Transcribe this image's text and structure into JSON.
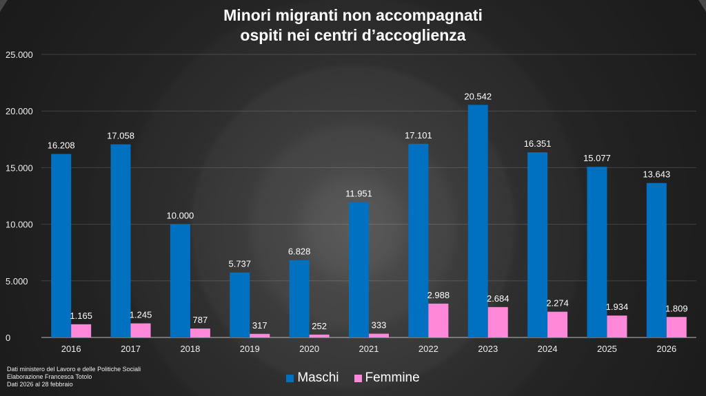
{
  "chart_data": {
    "type": "bar",
    "title_line1": "Minori migranti non accompagnati",
    "title_line2": "ospiti nei centri d’accoglienza",
    "categories": [
      "2016",
      "2017",
      "2018",
      "2019",
      "2020",
      "2021",
      "2022",
      "2023",
      "2024",
      "2025",
      "2026"
    ],
    "series": [
      {
        "name": "Maschi",
        "color": "#0070c0",
        "values": [
          16208,
          17058,
          10000,
          5737,
          6828,
          11951,
          17101,
          20542,
          16351,
          15077,
          13643
        ],
        "labels": [
          "16.208",
          "17.058",
          "10.000",
          "5.737",
          "6.828",
          "11.951",
          "17.101",
          "20.542",
          "16.351",
          "15.077",
          "13.643"
        ]
      },
      {
        "name": "Femmine",
        "color": "#ff88d8",
        "values": [
          1165,
          1245,
          787,
          317,
          252,
          333,
          2988,
          2684,
          2274,
          1934,
          1809
        ],
        "labels": [
          "1.165",
          "1.245",
          "787",
          "317",
          "252",
          "333",
          "2.988",
          "2.684",
          "2.274",
          "1.934",
          "1.809"
        ]
      }
    ],
    "ylim": [
      0,
      25000
    ],
    "yticks": [
      0,
      5000,
      10000,
      15000,
      20000,
      25000
    ],
    "ytick_labels": [
      "0",
      "5.000",
      "10.000",
      "15.000",
      "20.000",
      "25.000"
    ],
    "grid": true,
    "legend": "bottom-center",
    "xlabel": "",
    "ylabel": ""
  },
  "footer": {
    "line1": "Dati ministero del Lavoro e delle Politiche Sociali",
    "line2": "Elaborazione Francesca Totolo",
    "line3": "Dati 2026 al 28 febbraio"
  }
}
